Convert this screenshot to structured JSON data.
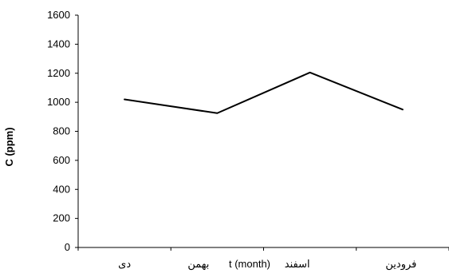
{
  "chart_data": {
    "type": "line",
    "categories": [
      "دی",
      "بهمن",
      "اسفند",
      "فرودین"
    ],
    "series": [
      {
        "values": [
          1020,
          925,
          1205,
          950
        ]
      }
    ],
    "xlabel": "t (month)",
    "ylabel": "C (ppm)",
    "ylim": [
      0,
      1600
    ],
    "yticks": [
      "0",
      "200",
      "400",
      "600",
      "800",
      "1000",
      "1200",
      "1400",
      "1600"
    ],
    "grid": false,
    "legend": "none",
    "colors": {
      "line": "#000000",
      "axis": "#000000"
    }
  }
}
